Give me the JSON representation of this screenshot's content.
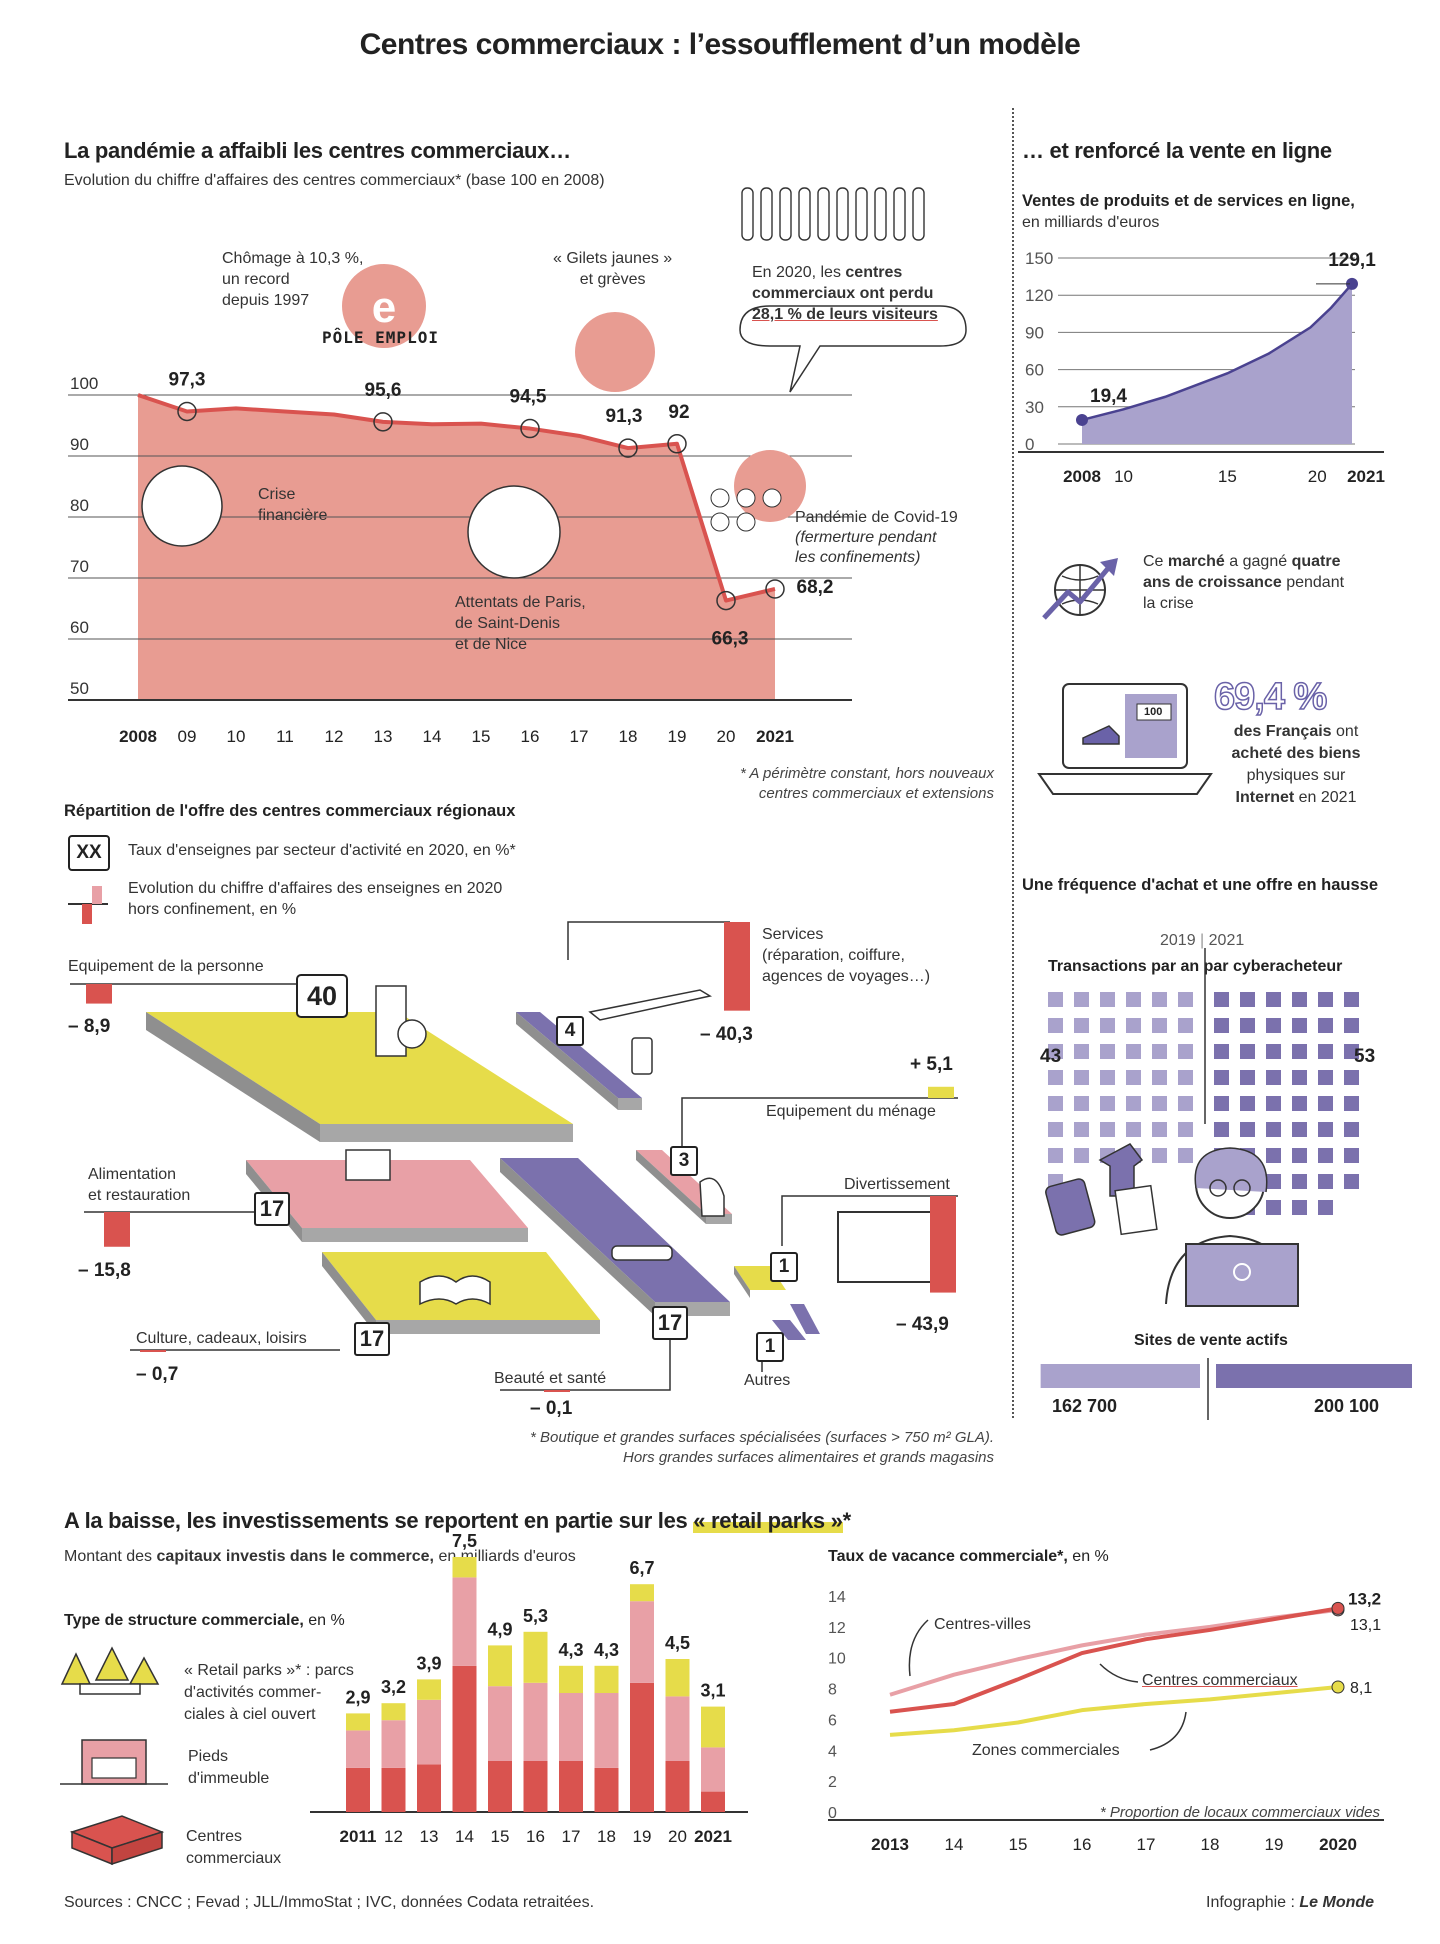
{
  "title": "Centres commerciaux : l’essoufflement d’un modèle",
  "section1": {
    "heading": "La pandémie a affaibli les centres commerciaux…",
    "subtitle": "Evolution du chiffre d'affaires des centres commerciaux* (base 100 en 2008)",
    "note_line1": "* A périmètre constant, hors nouveaux",
    "note_line2": "centres commerciaux et extensions",
    "annotations": {
      "chomage": [
        "Chômage à 10,3 %,",
        "un record",
        "depuis 1997"
      ],
      "pole_emploi": "PÔLE EMPLOI",
      "gilets": [
        "« Gilets jaunes »",
        "et grèves"
      ],
      "visitors_prefix": "En 2020, les",
      "visitors_bold1": "centres",
      "visitors_bold2": "commerciaux ont perdu",
      "visitors_bold3": "28,1 % de leurs visiteurs",
      "crise": [
        "Crise",
        "financière"
      ],
      "attentats": [
        "Attentats de Paris,",
        "de Saint-Denis",
        "et de Nice"
      ],
      "covid": [
        "Pandémie de Covid-19",
        "(fermerture pendant",
        "les confinements)"
      ]
    }
  },
  "section2": {
    "heading": "… et renforcé la vente en ligne",
    "subtitle_bold": "Ventes de produits et de services en ligne,",
    "subtitle": "en milliards d'euros",
    "growth_text": {
      "pre": "Ce",
      "b1": "marché",
      "mid": "a gagné",
      "b2": "quatre",
      "b3": "ans de croissance",
      "post": "pendant",
      "last": "la crise"
    },
    "percent": "69,4 %",
    "percent_text": {
      "b1": "des Français",
      "t1": "ont",
      "b2": "acheté des biens",
      "t2": "physiques sur",
      "b3": "Internet",
      "t3": "en 2021"
    },
    "screen_label": "100"
  },
  "section3": {
    "heading": "Répartition de l'offre des centres commerciaux régionaux",
    "legend_box": "XX",
    "legend_box_text": "Taux d'enseignes par secteur d'activité en 2020, en %*",
    "legend_bar_text": [
      "Evolution du chiffre d'affaires des enseignes en 2020",
      "hors confinement, en %"
    ],
    "note_line1": "* Boutique et grandes surfaces spécialisées (surfaces > 750 m² GLA).",
    "note_line2": "Hors grandes surfaces alimentaires et grands magasins",
    "sectors": [
      {
        "name": "Equipement de la personne",
        "share": "40",
        "change": "– 8,9",
        "change_value": -8.9
      },
      {
        "name": "Services (réparation, coiffure, agences de voyages…)",
        "name_lines": [
          "Services",
          "(réparation, coiffure,",
          "agences de voyages…)"
        ],
        "share": "4",
        "change": "– 40,3",
        "change_value": -40.3
      },
      {
        "name": "Equipement du ménage",
        "share": "3",
        "change": "+ 5,1",
        "change_value": 5.1
      },
      {
        "name": "Alimentation et restauration",
        "name_lines": [
          "Alimentation",
          "et restauration"
        ],
        "share": "17",
        "change": "– 15,8",
        "change_value": -15.8
      },
      {
        "name": "Divertissement",
        "share": "1",
        "change": "– 43,9",
        "change_value": -43.9
      },
      {
        "name": "Culture, cadeaux, loisirs",
        "share": "17",
        "change": "– 0,7",
        "change_value": -0.7
      },
      {
        "name": "Beauté et santé",
        "share": "17",
        "change": "– 0,1",
        "change_value": -0.1
      },
      {
        "name": "Autres",
        "share": "1",
        "change": "",
        "change_value": null
      }
    ]
  },
  "section4": {
    "heading": "Une fréquence d'achat et une offre en hausse",
    "years": [
      "2019",
      "2021"
    ],
    "transactions_label": "Transactions par an par cyberacheteur",
    "transactions": [
      "43",
      "53"
    ],
    "sites_label": "Sites de vente actifs",
    "sites": [
      "162 700",
      "200 100"
    ]
  },
  "section5": {
    "heading_pre": "A la baisse, les investissements se reportent en partie sur les",
    "heading_highlight": "« retail parks »",
    "heading_star": "*",
    "subtitle_pre": "Montant des",
    "subtitle_bold": "capitaux investis dans le commerce,",
    "subtitle_post": "en milliards d'euros",
    "structure_title": "Type de structure commerciale,",
    "structure_unit": "en %",
    "legend": [
      {
        "lines": [
          "« Retail parks »* : parcs",
          "d'activités commer-",
          "ciales à ciel ouvert"
        ]
      },
      {
        "lines": [
          "Pieds",
          "d'immeuble"
        ]
      },
      {
        "lines": [
          "Centres",
          "commerciaux"
        ]
      }
    ],
    "vacancy_title": "Taux de vacance commerciale*,",
    "vacancy_unit": "en %",
    "vacancy_note": "* Proportion de locaux commerciaux vides",
    "vacancy_labels": {
      "centres_villes": "Centres-villes",
      "centres_commerciaux": "Centres commerciaux",
      "zones": "Zones commerciales"
    }
  },
  "footer": {
    "sources": "Sources : CNCC ; Fevad ; JLL/ImmoStat ; IVC, données Codata retraitées.",
    "credit_pre": "Infographie :",
    "credit_brand": "Le Monde"
  },
  "colors": {
    "red": "#d9534f",
    "pink": "#e8a0a6",
    "salmon": "#e89c92",
    "yellow": "#e6dc4a",
    "purple": "#7b71ad",
    "lavender": "#a9a2cc"
  },
  "chart_data": [
    {
      "type": "area",
      "id": "ca_centres",
      "x": [
        "2008",
        "09",
        "10",
        "11",
        "12",
        "13",
        "14",
        "15",
        "16",
        "17",
        "18",
        "19",
        "20",
        "2021"
      ],
      "x_values": [
        2008,
        2009,
        2010,
        2011,
        2012,
        2013,
        2014,
        2015,
        2016,
        2017,
        2018,
        2019,
        2020,
        2021
      ],
      "values": [
        100,
        97.3,
        97.8,
        97.3,
        96.8,
        95.6,
        95.2,
        95.3,
        94.5,
        93.3,
        91.3,
        92,
        66.3,
        68.2
      ],
      "labeled": [
        {
          "x": 2009,
          "label": "97,3"
        },
        {
          "x": 2013,
          "label": "95,6"
        },
        {
          "x": 2016,
          "label": "94,5"
        },
        {
          "x": 2018,
          "label": "91,3"
        },
        {
          "x": 2019,
          "label": "92"
        },
        {
          "x": 2020,
          "label": "66,3"
        },
        {
          "x": 2021,
          "label": "68,2"
        }
      ],
      "y_ticks": [
        100,
        90,
        80,
        70,
        60,
        50
      ],
      "ylim": [
        50,
        100
      ]
    },
    {
      "type": "area",
      "id": "vente_en_ligne",
      "x_ticks": [
        "2008",
        "10",
        "15",
        "20",
        "2021"
      ],
      "x_tick_values": [
        2008,
        2010,
        2015,
        2020,
        2021
      ],
      "x_values": [
        2008,
        2010,
        2012,
        2015,
        2017,
        2019,
        2020,
        2021
      ],
      "values": [
        19.4,
        28,
        38,
        57,
        73,
        94,
        110,
        129.1
      ],
      "labeled": [
        {
          "x": 2008,
          "label": "19,4"
        },
        {
          "x": 2021,
          "label": "129,1"
        }
      ],
      "y_ticks": [
        150,
        120,
        90,
        60,
        30,
        0
      ],
      "ylim": [
        0,
        150
      ]
    },
    {
      "type": "bar",
      "id": "investissements",
      "stacked": true,
      "categories": [
        "2011",
        "12",
        "13",
        "14",
        "15",
        "16",
        "17",
        "18",
        "19",
        "20",
        "2021"
      ],
      "totals": [
        2.9,
        3.2,
        3.9,
        7.5,
        4.9,
        5.3,
        4.3,
        4.3,
        6.7,
        4.5,
        3.1
      ],
      "total_labels": [
        "2,9",
        "3,2",
        "3,9",
        "7,5",
        "4,9",
        "5,3",
        "4,3",
        "4,3",
        "6,7",
        "4,5",
        "3,1"
      ],
      "series": [
        {
          "name": "Centres commerciaux",
          "color": "#d9534f",
          "values": [
            1.3,
            1.3,
            1.4,
            4.3,
            1.5,
            1.5,
            1.5,
            1.3,
            3.8,
            1.5,
            0.6
          ]
        },
        {
          "name": "Pieds d'immeuble",
          "color": "#e8a0a6",
          "values": [
            1.1,
            1.4,
            1.9,
            2.6,
            2.2,
            2.3,
            2.0,
            2.2,
            2.4,
            1.9,
            1.3
          ]
        },
        {
          "name": "Retail parks",
          "color": "#e6dc4a",
          "values": [
            0.5,
            0.5,
            0.6,
            0.6,
            1.2,
            1.5,
            0.8,
            0.8,
            0.5,
            1.1,
            1.2
          ]
        }
      ]
    },
    {
      "type": "line",
      "id": "vacance",
      "x_ticks": [
        "2013",
        "14",
        "15",
        "16",
        "17",
        "18",
        "19",
        "2020"
      ],
      "x_values": [
        2013,
        2014,
        2015,
        2016,
        2017,
        2018,
        2019,
        2020
      ],
      "y_ticks": [
        14,
        12,
        10,
        8,
        6,
        4,
        2,
        0
      ],
      "ylim": [
        0,
        14
      ],
      "series": [
        {
          "name": "Centres-villes",
          "color": "#e8a0a6",
          "values": [
            7.6,
            8.9,
            9.9,
            10.8,
            11.5,
            12.0,
            12.6,
            13.1
          ],
          "end_label": "13,1"
        },
        {
          "name": "Centres commerciaux",
          "color": "#d9534f",
          "values": [
            6.5,
            7.0,
            8.6,
            10.3,
            11.2,
            11.8,
            12.5,
            13.2
          ],
          "end_label": "13,2"
        },
        {
          "name": "Zones commerciales",
          "color": "#e6dc4a",
          "values": [
            5.0,
            5.3,
            5.8,
            6.6,
            7.0,
            7.3,
            7.7,
            8.1
          ],
          "end_label": "8,1"
        }
      ]
    }
  ]
}
